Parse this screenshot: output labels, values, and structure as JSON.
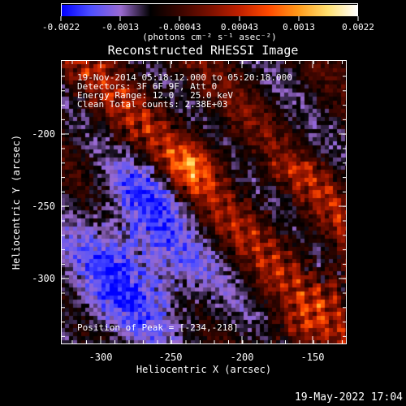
{
  "colorbar": {
    "tick_labels": [
      "-0.0022",
      "-0.0013",
      "-0.00043",
      "0.00043",
      "0.0013",
      "0.0022"
    ],
    "unit_label": "(photons cm⁻² s⁻¹ asec⁻²)",
    "colormap": [
      "#0000ff",
      "#5050ff",
      "#9a6ad0",
      "#000000",
      "#3a0500",
      "#7a1000",
      "#c02000",
      "#ff4a00",
      "#ff9a1a",
      "#ffe070",
      "#ffffff"
    ]
  },
  "title": "Reconstructed RHESSI Image",
  "info": {
    "line1": "19-Nov-2014 05:18:12.000 to 05:20:18.000",
    "line2": "Detectors: 3F 6F 9F, Att 0",
    "line3": "Energy Range: 12.0 - 25.0 keV",
    "line4": "Clean    Total counts: 2.38E+03"
  },
  "peak_text": "Position of Peak = [-234,-218]",
  "axes": {
    "x_label": "Heliocentric X (arcsec)",
    "y_label": "Heliocentric Y (arcsec)",
    "x_ticks": [
      "-300",
      "-250",
      "-200",
      "-150"
    ],
    "y_ticks": [
      "-200",
      "-250",
      "-300"
    ]
  },
  "footer_timestamp": "19-May-2022 17:04"
}
